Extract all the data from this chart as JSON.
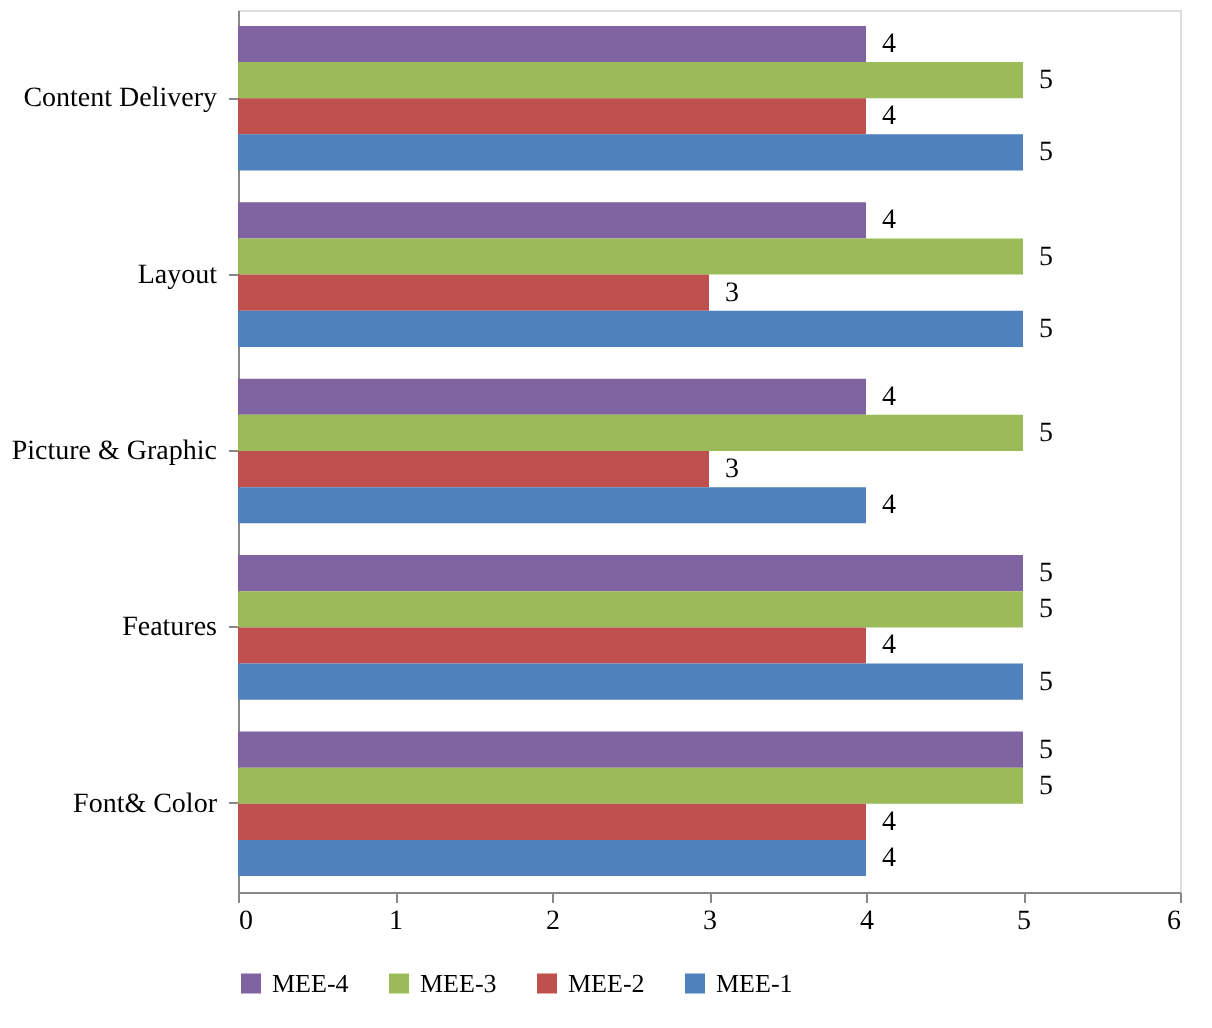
{
  "chart_data": {
    "type": "bar",
    "orientation": "horizontal",
    "categories": [
      "Content Delivery",
      "Layout",
      "Picture & Graphic",
      "Features",
      "Font& Color"
    ],
    "series": [
      {
        "name": "MEE-4",
        "color": "#8064a2",
        "values": [
          4,
          4,
          4,
          5,
          5
        ]
      },
      {
        "name": "MEE-3",
        "color": "#9bbb59",
        "values": [
          5,
          5,
          5,
          5,
          5
        ]
      },
      {
        "name": "MEE-2",
        "color": "#c0504d",
        "values": [
          4,
          3,
          3,
          4,
          4
        ]
      },
      {
        "name": "MEE-1",
        "color": "#4f81bd",
        "values": [
          5,
          5,
          4,
          5,
          4
        ]
      }
    ],
    "xlim": [
      0,
      6
    ],
    "xticks": [
      0,
      1,
      2,
      3,
      4,
      5,
      6
    ],
    "data_labels": true,
    "grid": false,
    "legend": "bottom"
  }
}
